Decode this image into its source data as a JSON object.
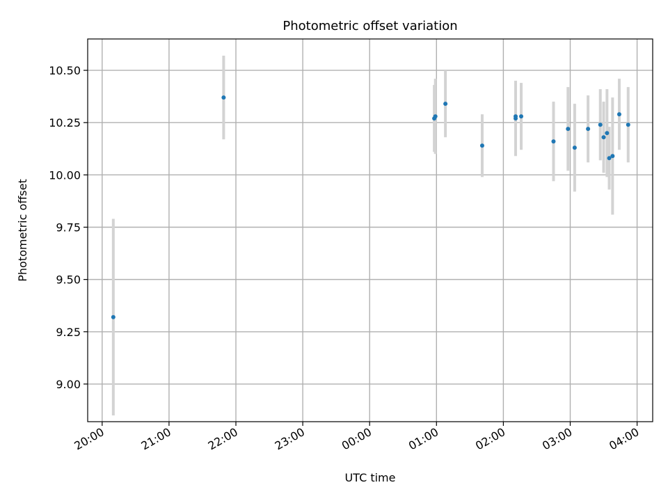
{
  "chart_data": {
    "type": "scatter",
    "title": "Photometric offset variation",
    "xlabel": "UTC time",
    "ylabel": "Photometric offset",
    "x_unit": "UTC time (HH:MM), night starting 20:00 and crossing midnight",
    "xlim": [
      "19:47",
      "04:14"
    ],
    "ylim": [
      8.82,
      10.65
    ],
    "x_ticks": [
      "20:00",
      "21:00",
      "22:00",
      "23:00",
      "00:00",
      "01:00",
      "02:00",
      "03:00",
      "04:00"
    ],
    "y_ticks": [
      "9.00",
      "9.25",
      "9.50",
      "9.75",
      "10.00",
      "10.25",
      "10.50"
    ],
    "grid": true,
    "marker_color": "#1f77b4",
    "errorbar_color": "#d3d3d3",
    "points": [
      {
        "x": "20:10",
        "y": 9.32,
        "err": 0.47
      },
      {
        "x": "21:49",
        "y": 10.37,
        "err": 0.2
      },
      {
        "x": "00:58",
        "y": 10.27,
        "err": 0.16
      },
      {
        "x": "00:59",
        "y": 10.28,
        "err": 0.18
      },
      {
        "x": "01:08",
        "y": 10.34,
        "err": 0.16
      },
      {
        "x": "01:41",
        "y": 10.14,
        "err": 0.15
      },
      {
        "x": "02:11",
        "y": 10.27,
        "err": 0.18
      },
      {
        "x": "02:11",
        "y": 10.28,
        "err": 0.17
      },
      {
        "x": "02:16",
        "y": 10.28,
        "err": 0.16
      },
      {
        "x": "02:45",
        "y": 10.16,
        "err": 0.19
      },
      {
        "x": "02:58",
        "y": 10.22,
        "err": 0.2
      },
      {
        "x": "03:04",
        "y": 10.13,
        "err": 0.21
      },
      {
        "x": "03:16",
        "y": 10.22,
        "err": 0.16
      },
      {
        "x": "03:27",
        "y": 10.24,
        "err": 0.17
      },
      {
        "x": "03:30",
        "y": 10.18,
        "err": 0.17
      },
      {
        "x": "03:33",
        "y": 10.2,
        "err": 0.21
      },
      {
        "x": "03:35",
        "y": 10.08,
        "err": 0.15
      },
      {
        "x": "03:38",
        "y": 10.09,
        "err": 0.28
      },
      {
        "x": "03:44",
        "y": 10.29,
        "err": 0.17
      },
      {
        "x": "03:52",
        "y": 10.24,
        "err": 0.18
      }
    ]
  }
}
